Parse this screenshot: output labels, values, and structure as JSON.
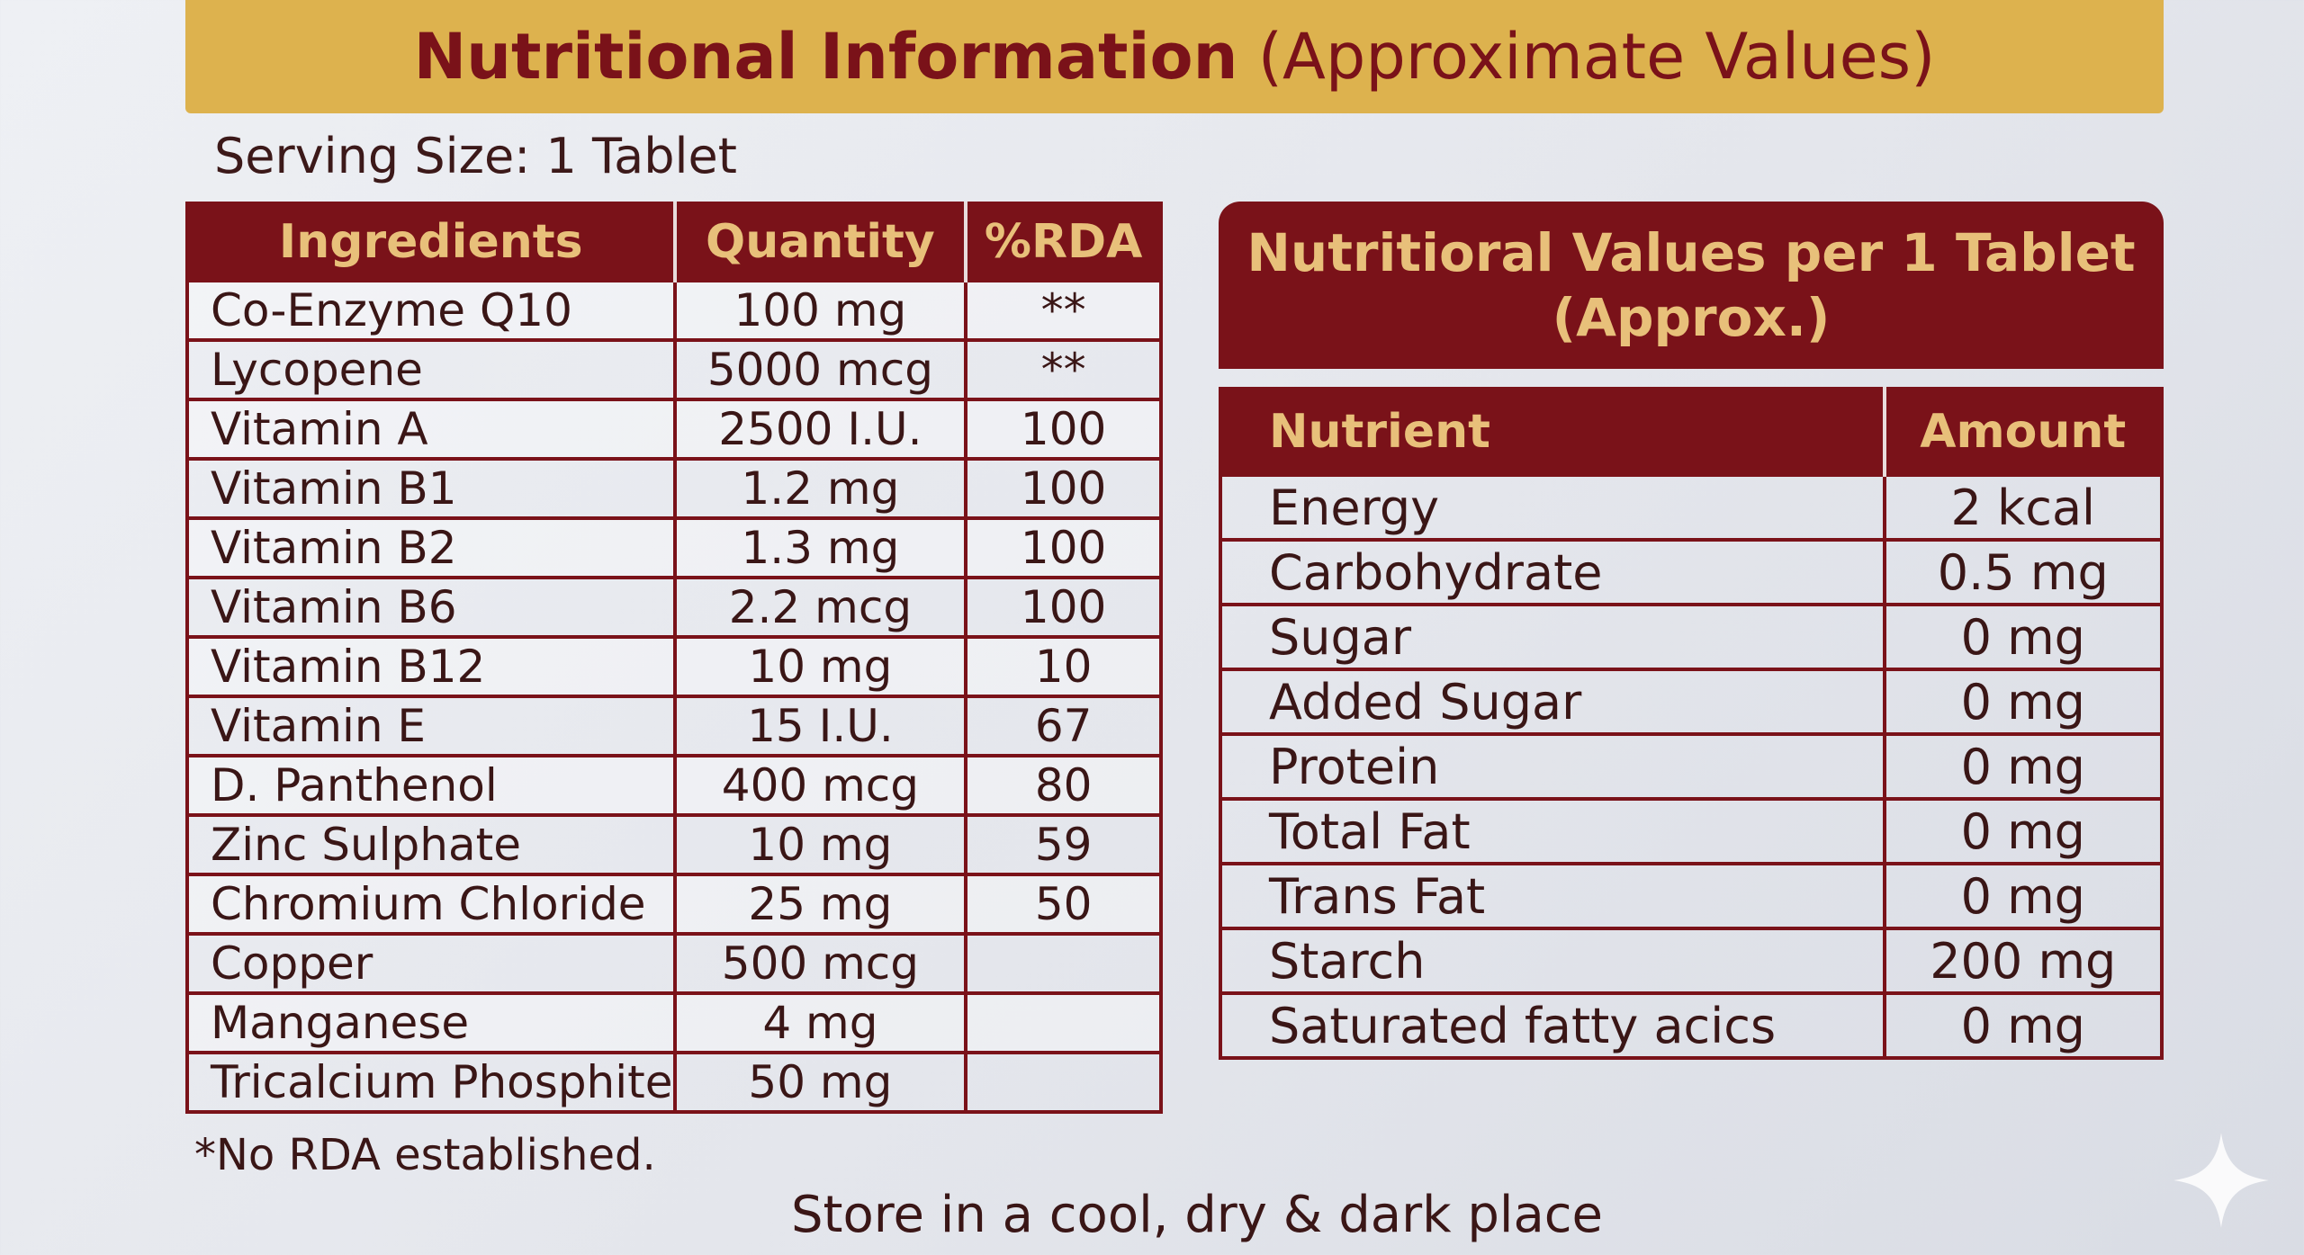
{
  "title": {
    "bold": "Nutritional Information",
    "regular": "(Approximate Values)"
  },
  "serving_size": "Serving Size: 1 Tablet",
  "ingredients_table": {
    "headers": [
      "Ingredients",
      "Quantity",
      "%RDA"
    ],
    "rows": [
      [
        "Co-Enzyme Q10",
        "100 mg",
        "**"
      ],
      [
        "Lycopene",
        "5000 mcg",
        "**"
      ],
      [
        "Vitamin A",
        "2500 I.U.",
        "100"
      ],
      [
        "Vitamin B1",
        "1.2 mg",
        "100"
      ],
      [
        "Vitamin B2",
        "1.3 mg",
        "100"
      ],
      [
        "Vitamin B6",
        "2.2 mcg",
        "100"
      ],
      [
        "Vitamin B12",
        "10 mg",
        "10"
      ],
      [
        "Vitamin E",
        "15 I.U.",
        "67"
      ],
      [
        "D. Panthenol",
        "400 mcg",
        "80"
      ],
      [
        "Zinc Sulphate",
        "10 mg",
        "59"
      ],
      [
        "Chromium Chloride",
        "25 mg",
        "50"
      ],
      [
        "Copper",
        "500 mcg",
        ""
      ],
      [
        "Manganese",
        "4 mg",
        ""
      ],
      [
        "Tricalcium Phosphite",
        "50 mg",
        ""
      ]
    ]
  },
  "footnote": "*No RDA established.",
  "storage_note": "Store in a cool, dry & dark place",
  "nutritional_values": {
    "heading_line1": "Nutritioral Values per 1 Tablet",
    "heading_line2": "(Approx.)",
    "headers": [
      "Nutrient",
      "Amount"
    ],
    "rows": [
      [
        "Energy",
        "2 kcal"
      ],
      [
        "Carbohydrate",
        "0.5 mg"
      ],
      [
        "Sugar",
        "0 mg"
      ],
      [
        "Added Sugar",
        "0 mg"
      ],
      [
        "Protein",
        "0 mg"
      ],
      [
        "Total Fat",
        "0 mg"
      ],
      [
        "Trans Fat",
        "0 mg"
      ],
      [
        "Starch",
        "200 mg"
      ],
      [
        "Saturated fatty acics",
        "0 mg"
      ]
    ]
  },
  "colors": {
    "maroon": "#7a1219",
    "gold": "#ddb24e",
    "header_text": "#e8c07a"
  },
  "icons": {
    "corner": "sparkle-icon"
  }
}
